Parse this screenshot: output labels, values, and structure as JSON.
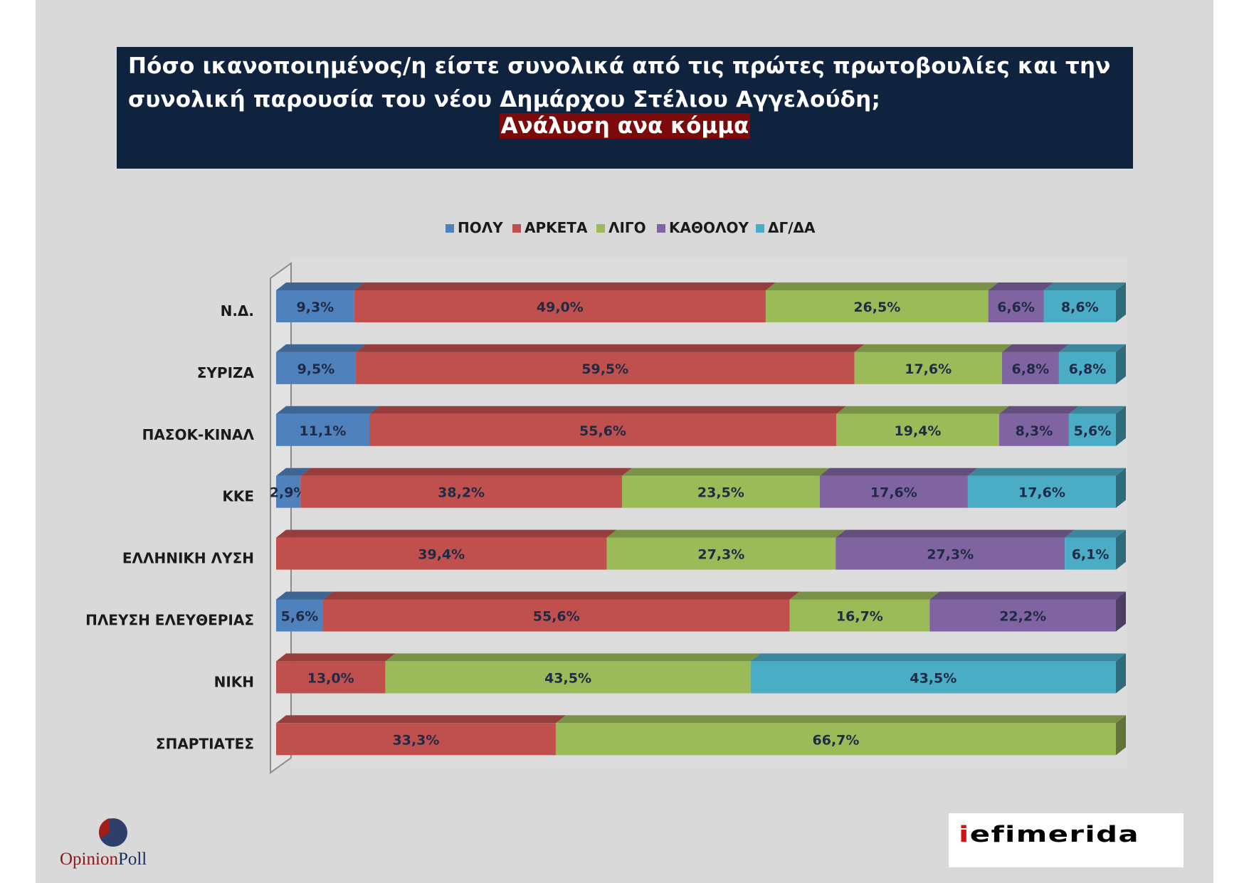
{
  "title": "Πόσο ικανοποιημένος/η είστε συνολικά από τις πρώτες πρωτοβουλίες και την συνολική παρουσία του νέου Δημάρχου Στέλιου Αγγελούδη;",
  "subtitle": "Ανάλυση ανα κόμμα",
  "logos": {
    "opinionpoll": {
      "part1": "Opinion",
      "part2": "Poll"
    },
    "iefimerida": {
      "first": "i",
      "rest": "efimerida"
    }
  },
  "colors": {
    "background": "#d9d9d9",
    "title_bg": "#0f223e",
    "subtitle_bg": "#7c0a0a"
  },
  "chart_data": {
    "type": "bar",
    "orientation": "horizontal",
    "stacked": "100%",
    "style": "3d",
    "legend_position": "top",
    "categories": [
      "Ν.Δ.",
      "ΣΥΡΙΖΑ",
      "ΠΑΣΟΚ-ΚΙΝΑΛ",
      "ΚΚΕ",
      "ΕΛΛΗΝΙΚΗ ΛΥΣΗ",
      "ΠΛΕΥΣΗ ΕΛΕΥΘΕΡΙΑΣ",
      "ΝΙΚΗ",
      "ΣΠΑΡΤΙΑΤΕΣ"
    ],
    "series": [
      {
        "name": "ΠΟΛΥ",
        "color": "#4f81bd",
        "values": [
          9.3,
          9.5,
          11.1,
          2.9,
          null,
          5.6,
          null,
          null
        ],
        "labels": [
          "9,3%",
          "9,5%",
          "11,1%",
          "2,9%",
          "",
          "5,6%",
          "",
          ""
        ]
      },
      {
        "name": "ΑΡΚΕΤΑ",
        "color": "#c0504d",
        "values": [
          49.0,
          59.5,
          55.6,
          38.2,
          39.4,
          55.6,
          13.0,
          33.3
        ],
        "labels": [
          "49,0%",
          "59,5%",
          "55,6%",
          "38,2%",
          "39,4%",
          "55,6%",
          "13,0%",
          "33,3%"
        ]
      },
      {
        "name": "ΛΙΓΟ",
        "color": "#9bbb59",
        "values": [
          26.5,
          17.6,
          19.4,
          23.5,
          27.3,
          16.7,
          43.5,
          66.7
        ],
        "labels": [
          "26,5%",
          "17,6%",
          "19,4%",
          "23,5%",
          "27,3%",
          "16,7%",
          "43,5%",
          "66,7%"
        ]
      },
      {
        "name": "ΚΑΘΟΛΟΥ",
        "color": "#8064a2",
        "values": [
          6.6,
          6.8,
          8.3,
          17.6,
          27.3,
          22.2,
          null,
          null
        ],
        "labels": [
          "6,6%",
          "6,8%",
          "8,3%",
          "17,6%",
          "27,3%",
          "22,2%",
          "",
          ""
        ]
      },
      {
        "name": "ΔΓ/ΔΑ",
        "color": "#4bacc6",
        "values": [
          8.6,
          6.8,
          5.6,
          17.6,
          6.1,
          null,
          43.5,
          null
        ],
        "labels": [
          "8,6%",
          "6,8%",
          "5,6%",
          "17,6%",
          "6,1%",
          "",
          "43,5%",
          ""
        ]
      }
    ],
    "xlim": [
      0,
      100
    ],
    "grid": false
  }
}
